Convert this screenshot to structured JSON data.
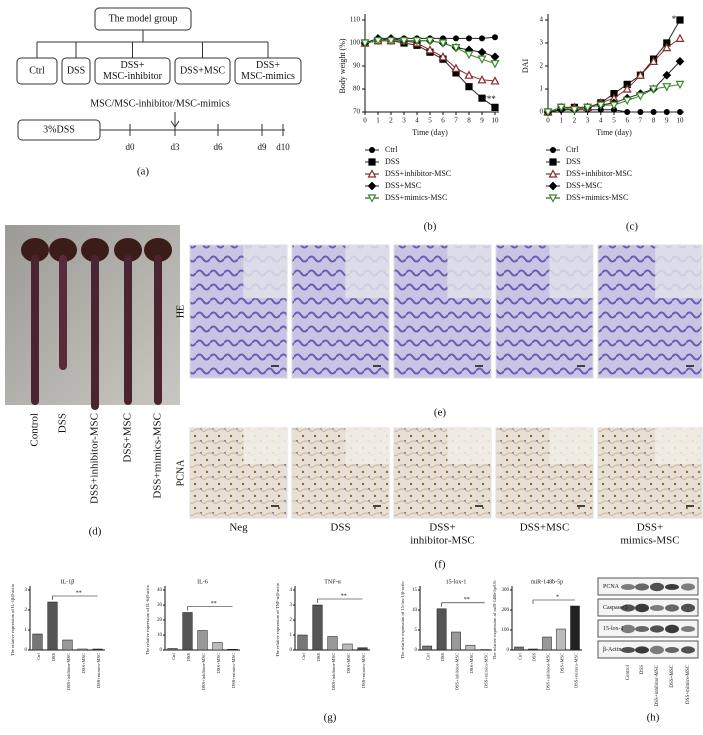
{
  "panel_labels": [
    "(a)",
    "(b)",
    "(c)",
    "(d)",
    "(e)",
    "(f)",
    "(g)",
    "(h)"
  ],
  "diagram": {
    "top": "The model group",
    "groups": [
      [
        "Ctrl"
      ],
      [
        "DSS"
      ],
      [
        "DSS+",
        "MSC-inhibitor"
      ],
      [
        "DSS+MSC"
      ],
      [
        "DSS+",
        "MSC-mimics"
      ]
    ],
    "treatment": "MSC/MSC-inhibitor/MSC-mimics",
    "induction": "3%DSS",
    "days": [
      "d0",
      "d3",
      "d6",
      "d9",
      "d10"
    ]
  },
  "colon_photo": {
    "labels": [
      "Control",
      "DSS",
      "DSS+inhibitor-MSC",
      "DSS+MSC",
      "DSS+mimics-MSC"
    ]
  },
  "histology": {
    "rows": [
      "HE",
      "PCNA"
    ],
    "columns": [
      [
        "Neg"
      ],
      [
        "DSS"
      ],
      [
        "DSS+",
        "inhibitor-MSC"
      ],
      [
        "DSS+MSC"
      ],
      [
        "DSS+",
        "mimics-MSC"
      ]
    ]
  },
  "western_blot": {
    "proteins": [
      "PCNA",
      "Caspase-3",
      "15-lox-1",
      "β-Actin"
    ],
    "lanes": [
      "Control",
      "DSS",
      "DSS+inhibitor-MSC",
      "DSS+MSC",
      "DSS+mimics-MSC"
    ]
  },
  "chart_data": [
    {
      "type": "line",
      "y_label": "Body weight (%)",
      "x_label": "Time (day)",
      "annotation": "***",
      "x": [
        0,
        1,
        2,
        3,
        4,
        5,
        6,
        7,
        8,
        9,
        10
      ],
      "xlim": [
        0,
        10
      ],
      "xticks": [
        0,
        1,
        2,
        3,
        4,
        5,
        6,
        7,
        8,
        9,
        10
      ],
      "ylim": [
        70,
        110
      ],
      "yticks": [
        70,
        80,
        90,
        100,
        110
      ],
      "legend": "bottom",
      "series": [
        {
          "name": "Ctrl",
          "color": "#000000",
          "marker": "circle",
          "values": [
            100,
            101,
            102,
            102,
            102,
            102,
            102,
            102,
            102,
            102,
            102.5
          ]
        },
        {
          "name": "DSS",
          "color": "#000000",
          "marker": "square",
          "values": [
            100,
            101,
            101,
            100,
            99,
            96,
            93,
            87,
            81,
            76,
            72
          ]
        },
        {
          "name": "DSS+inhibitor-MSC",
          "color": "#8b2a2a",
          "marker": "triangle-up",
          "values": [
            100,
            101,
            101,
            101,
            100,
            97,
            94,
            89,
            86,
            84,
            83.5
          ]
        },
        {
          "name": "DSS+MSC",
          "color": "#000000",
          "marker": "diamond",
          "values": [
            100,
            102,
            102,
            101,
            101,
            101,
            100,
            98,
            97,
            96,
            94
          ]
        },
        {
          "name": "DSS+mimics-MSC",
          "color": "#3a8a2a",
          "marker": "triangle-down",
          "values": [
            100,
            101,
            101,
            101,
            101,
            101,
            100,
            98,
            95,
            93,
            91
          ]
        }
      ]
    },
    {
      "type": "line",
      "y_label": "DAI",
      "x_label": "Time (day)",
      "annotation": "*",
      "x": [
        0,
        1,
        2,
        3,
        4,
        5,
        6,
        7,
        8,
        9,
        10
      ],
      "xlim": [
        0,
        10
      ],
      "xticks": [
        0,
        1,
        2,
        3,
        4,
        5,
        6,
        7,
        8,
        9,
        10
      ],
      "ylim": [
        0,
        4
      ],
      "yticks": [
        0,
        1,
        2,
        3,
        4
      ],
      "legend": "bottom",
      "series": [
        {
          "name": "Ctrl",
          "color": "#000000",
          "marker": "circle",
          "values": [
            0,
            0.1,
            0.1,
            0.1,
            0.1,
            0.1,
            0,
            0,
            0,
            0,
            0
          ]
        },
        {
          "name": "DSS",
          "color": "#000000",
          "marker": "square",
          "values": [
            0,
            0.2,
            0.2,
            0.2,
            0.4,
            0.8,
            1.2,
            1.6,
            2.3,
            3.0,
            4.0
          ]
        },
        {
          "name": "DSS+inhibitor-MSC",
          "color": "#8b2a2a",
          "marker": "triangle-up",
          "values": [
            0,
            0.2,
            0.2,
            0.2,
            0.4,
            0.6,
            1.0,
            1.6,
            2.2,
            2.8,
            3.2
          ]
        },
        {
          "name": "DSS+MSC",
          "color": "#000000",
          "marker": "diamond",
          "values": [
            0,
            0.1,
            0.1,
            0.2,
            0.3,
            0.4,
            0.6,
            0.8,
            1.0,
            1.6,
            2.2
          ]
        },
        {
          "name": "DSS+mimics-MSC",
          "color": "#3a8a2a",
          "marker": "triangle-down",
          "values": [
            0,
            0.2,
            0.1,
            0.2,
            0.3,
            0.3,
            0.5,
            0.7,
            1.0,
            1.1,
            1.2
          ]
        }
      ]
    },
    {
      "type": "bar",
      "title": "IL-1β",
      "y_label": "The relative expression of IL-1β/β-actin",
      "annotation": "**",
      "categories": [
        "Ctrl",
        "DSS",
        "DSS+inhibitor-MSC",
        "DSS+MSC",
        "DSS+mimics-MSC"
      ],
      "values": [
        0.8,
        2.4,
        0.5,
        0.05,
        0.05
      ],
      "colors": [
        "#777777",
        "#555555",
        "#999999",
        "#bbbbbb",
        "#444444"
      ],
      "ylim": [
        0,
        3
      ],
      "yticks": [
        0,
        1,
        2,
        3
      ]
    },
    {
      "type": "bar",
      "title": "IL-6",
      "y_label": "The relative expression of IL-6/β-actin",
      "annotation": "**",
      "categories": [
        "Ctrl",
        "DSS",
        "DSS+inhibitor-MSC",
        "DSS+MSC",
        "DSS+mimics-MSC"
      ],
      "values": [
        1,
        25,
        13,
        5,
        0.5
      ],
      "colors": [
        "#777777",
        "#555555",
        "#999999",
        "#bbbbbb",
        "#444444"
      ],
      "ylim": [
        0,
        40
      ],
      "yticks": [
        0,
        10,
        20,
        30,
        40
      ]
    },
    {
      "type": "bar",
      "title": "TNF-α",
      "y_label": "The relative expression of TNF-α/β-actin",
      "annotation": "**",
      "categories": [
        "Ctrl",
        "DSS",
        "DSS+inhibitor-MSC",
        "DSS+MSC",
        "DSS+mimics-MSC"
      ],
      "values": [
        1,
        3,
        0.9,
        0.4,
        0.15
      ],
      "colors": [
        "#777777",
        "#555555",
        "#999999",
        "#bbbbbb",
        "#444444"
      ],
      "ylim": [
        0,
        4
      ],
      "yticks": [
        0,
        1,
        2,
        3,
        4
      ]
    },
    {
      "type": "bar",
      "title": "15-lox-1",
      "y_label": "The relative expression of 15-lox-1/β-actin",
      "annotation": "**",
      "categories": [
        "Ctrl",
        "DSS",
        "DSS+inhibitor-MSC",
        "DSS+MSC",
        "DSS+mimics-MSC"
      ],
      "values": [
        1,
        10.3,
        4.5,
        1.2,
        0.1
      ],
      "colors": [
        "#777777",
        "#555555",
        "#999999",
        "#bbbbbb",
        "#444444"
      ],
      "ylim": [
        0,
        15
      ],
      "yticks": [
        0,
        5,
        10,
        15
      ]
    },
    {
      "type": "bar",
      "title": "miR-148b-5p",
      "y_label": "The relative expression of miR-148b-5p/U6",
      "annotation": "*",
      "categories": [
        "Ctrl",
        "DSS",
        "DSS+inhibitor-MSC",
        "DSS+MSC",
        "DSS+mimics-MSC"
      ],
      "values": [
        15,
        5,
        65,
        105,
        220
      ],
      "colors": [
        "#777777",
        "#555555",
        "#999999",
        "#bbbbbb",
        "#222222"
      ],
      "ylim": [
        0,
        300
      ],
      "yticks": [
        0,
        100,
        200,
        300
      ]
    }
  ]
}
